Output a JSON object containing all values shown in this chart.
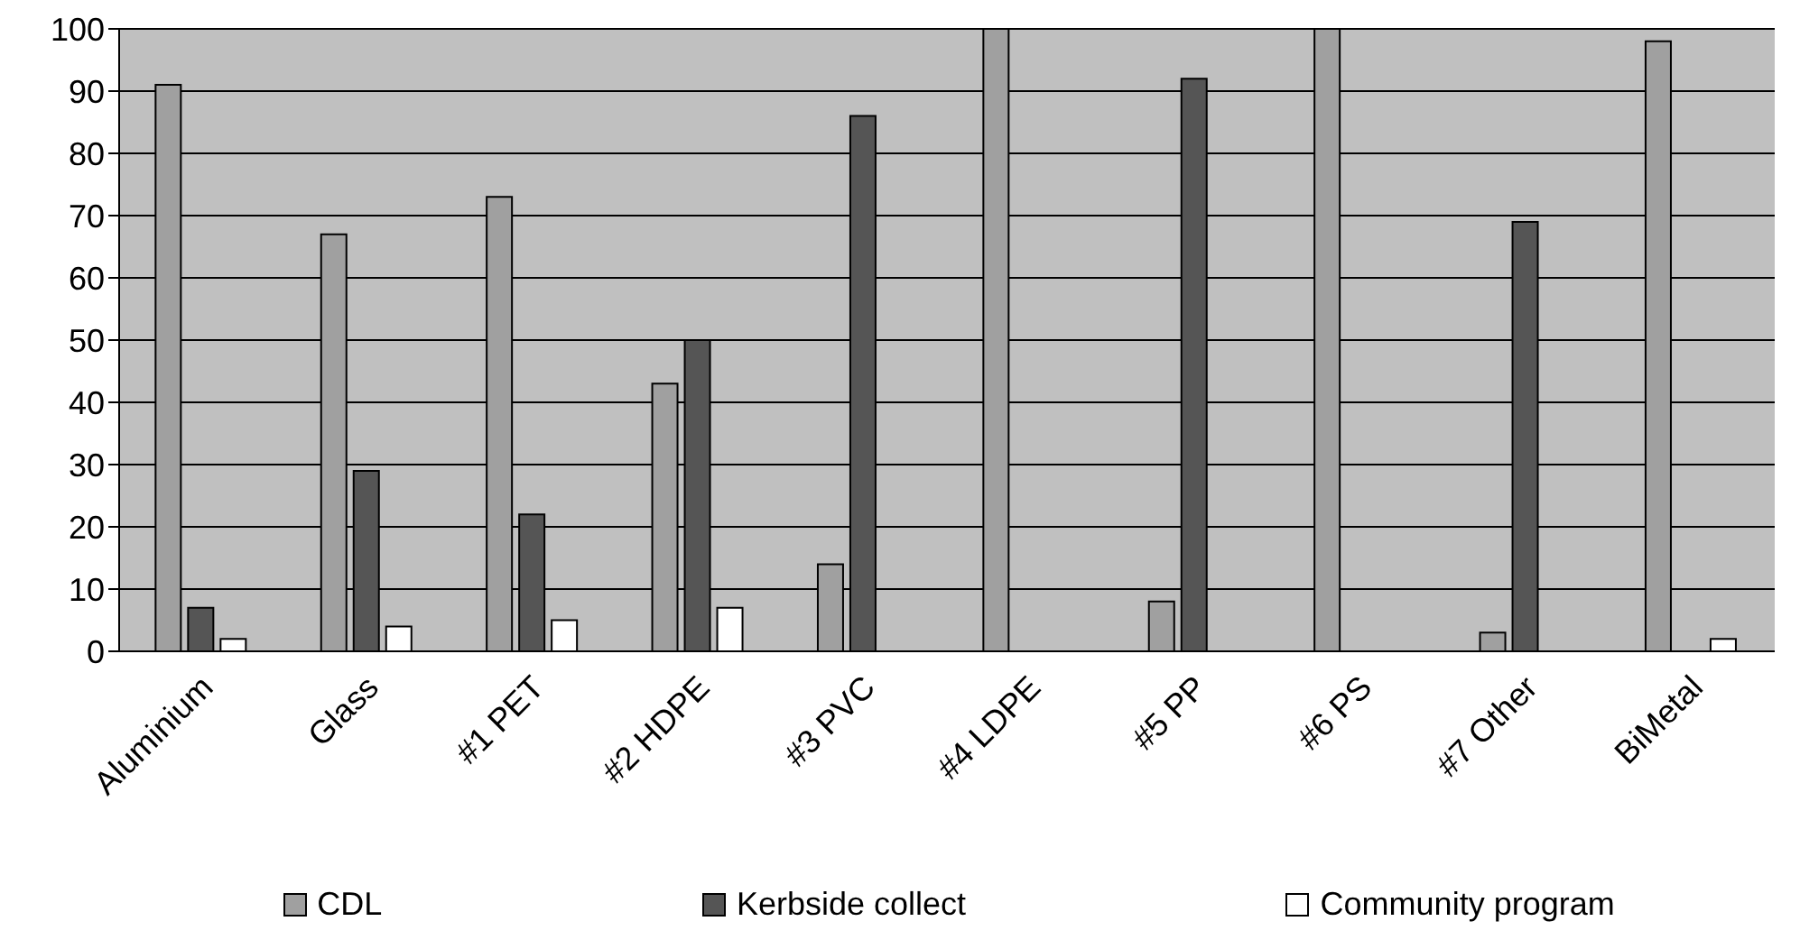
{
  "chart_data": {
    "type": "bar",
    "categories": [
      "Aluminium",
      "Glass",
      "#1 PET",
      "#2 HDPE",
      "#3 PVC",
      "#4 LDPE",
      "#5 PP",
      "#6 PS",
      "#7 Other",
      "BiMetal"
    ],
    "series": [
      {
        "name": "CDL",
        "color": "#a0a0a0",
        "values": [
          91,
          67,
          73,
          43,
          14,
          100,
          8,
          100,
          3,
          98
        ]
      },
      {
        "name": "Kerbside collect",
        "color": "#555555",
        "values": [
          7,
          29,
          22,
          50,
          86,
          0,
          92,
          0,
          69,
          0
        ]
      },
      {
        "name": "Community program",
        "color": "#ffffff",
        "values": [
          2,
          4,
          5,
          7,
          0,
          0,
          0,
          0,
          0,
          2
        ]
      }
    ],
    "ylim": [
      0,
      100
    ],
    "yticks": [
      0,
      10,
      20,
      30,
      40,
      50,
      60,
      70,
      80,
      90,
      100
    ],
    "grid": "y",
    "legend": "bottom"
  }
}
